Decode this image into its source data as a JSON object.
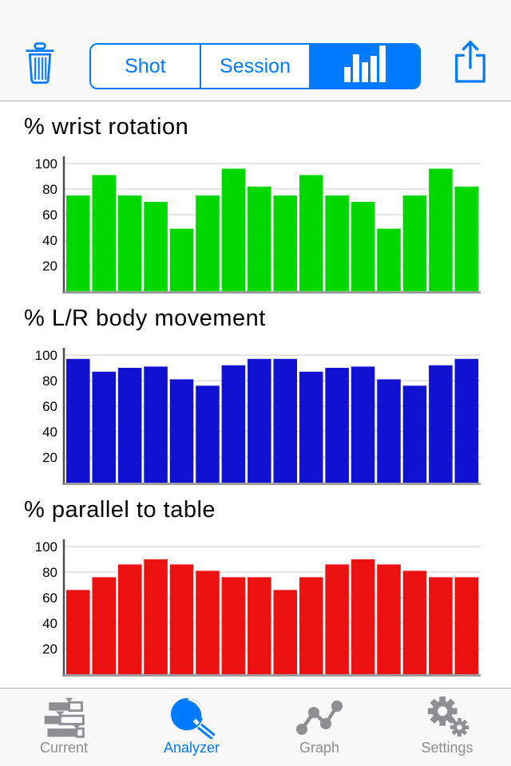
{
  "toolbar": {
    "trash_icon": "trash-icon",
    "share_icon": "share-icon",
    "segments": [
      {
        "label": "Shot",
        "selected": false
      },
      {
        "label": "Session",
        "selected": false
      },
      {
        "label": "",
        "icon": "bar-chart-icon",
        "selected": true
      }
    ]
  },
  "chart_data": [
    {
      "type": "bar",
      "title": "% wrist rotation",
      "bar_color": "#00D800",
      "values": [
        75,
        91,
        75,
        70,
        49,
        75,
        96,
        82,
        75,
        91,
        75,
        70,
        49,
        75,
        96,
        82
      ],
      "yticks": [
        20,
        40,
        60,
        80,
        100
      ],
      "ylim": [
        0,
        105
      ],
      "xlabel": "",
      "ylabel": "",
      "grid": true,
      "x_tick_labels": [],
      "legend": "none"
    },
    {
      "type": "bar",
      "title": "% L/R body movement",
      "bar_color": "#1111D1",
      "values": [
        97,
        87,
        90,
        91,
        81,
        76,
        92,
        97,
        97,
        87,
        90,
        91,
        81,
        76,
        92,
        97
      ],
      "yticks": [
        20,
        40,
        60,
        80,
        100
      ],
      "ylim": [
        0,
        105
      ],
      "xlabel": "",
      "ylabel": "",
      "grid": true,
      "x_tick_labels": [],
      "legend": "none"
    },
    {
      "type": "bar",
      "title": "% parallel to table",
      "bar_color": "#EC1111",
      "values": [
        66,
        76,
        86,
        90,
        86,
        81,
        76,
        76,
        66,
        76,
        86,
        90,
        86,
        81,
        76,
        76
      ],
      "yticks": [
        20,
        40,
        60,
        80,
        100
      ],
      "ylim": [
        0,
        105
      ],
      "xlabel": "",
      "ylabel": "",
      "grid": true,
      "x_tick_labels": [],
      "legend": "none"
    }
  ],
  "tabbar": {
    "items": [
      {
        "label": "Current",
        "icon": "gauge-bars-icon",
        "active": false
      },
      {
        "label": "Analyzer",
        "icon": "paddle-icon",
        "active": true
      },
      {
        "label": "Graph",
        "icon": "node-graph-icon",
        "active": false
      },
      {
        "label": "Settings",
        "icon": "gears-icon",
        "active": false
      }
    ]
  },
  "colors": {
    "accent": "#007AFF",
    "inactive_gray": "#8E8E93",
    "green_bar": "#00D800",
    "blue_bar": "#1111D1",
    "red_bar": "#EC1111",
    "gridline": "#DDDDDD",
    "bar_background": "#F9F9F9"
  }
}
